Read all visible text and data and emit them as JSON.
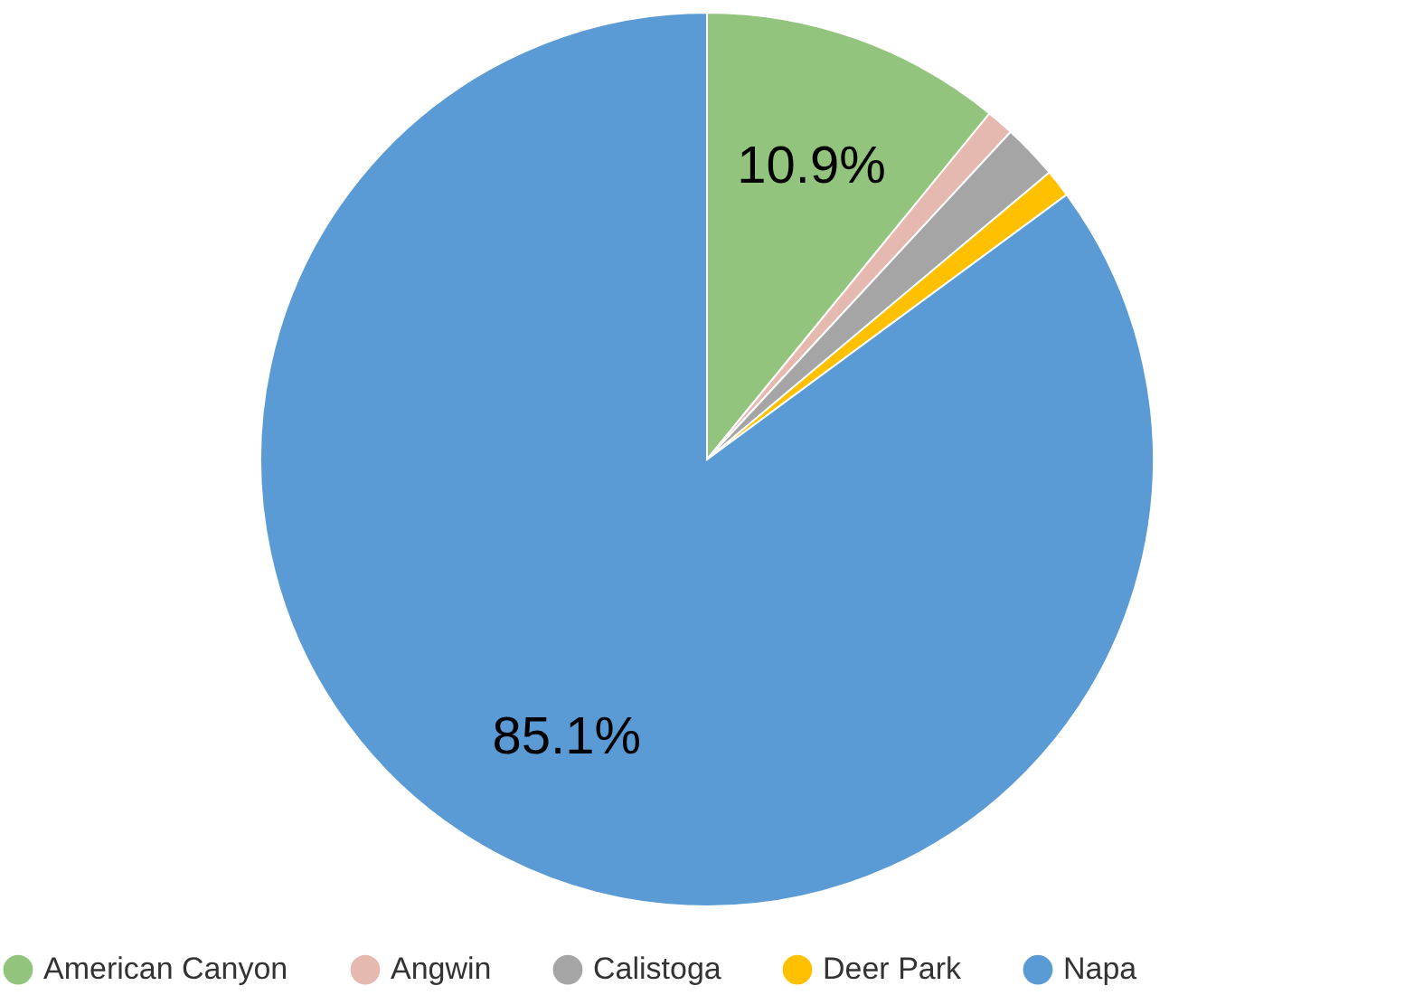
{
  "chart_data": {
    "type": "pie",
    "categories": [
      "American Canyon",
      "Angwin",
      "Calistoga",
      "Deer Park",
      "Napa"
    ],
    "values": [
      10.9,
      1.0,
      2.0,
      1.0,
      85.1
    ],
    "value_labels": [
      "10.9%",
      null,
      null,
      null,
      "85.1%"
    ],
    "colors": [
      "#93c47d",
      "#e6b9b0",
      "#a5a5a5",
      "#ffc000",
      "#5b9bd5"
    ],
    "legend": "bottom"
  }
}
